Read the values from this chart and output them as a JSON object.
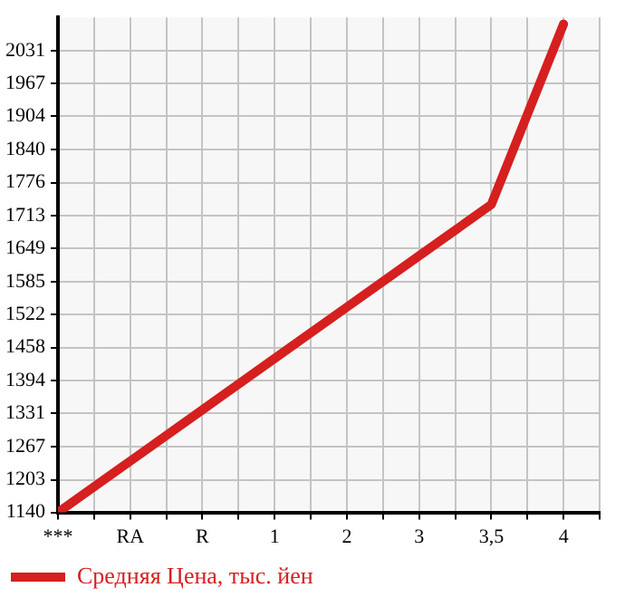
{
  "chart_data": {
    "type": "line",
    "categories": [
      "***",
      "RA",
      "R",
      "1",
      "2",
      "3",
      "3,5",
      "4"
    ],
    "series": [
      {
        "name": "Средняя Цена, тыс. йен",
        "color": "#d61f1f",
        "values": [
          1140,
          1239,
          1338,
          1437,
          1536,
          1635,
          1734,
          2082
        ]
      }
    ],
    "ylim": [
      1140,
      2095
    ],
    "yticks": [
      1140,
      1203,
      1267,
      1331,
      1394,
      1458,
      1522,
      1585,
      1649,
      1713,
      1776,
      1840,
      1904,
      1967,
      2031
    ],
    "grid": true,
    "legend": "bottom left",
    "marker": "none",
    "line_style": "solid"
  }
}
